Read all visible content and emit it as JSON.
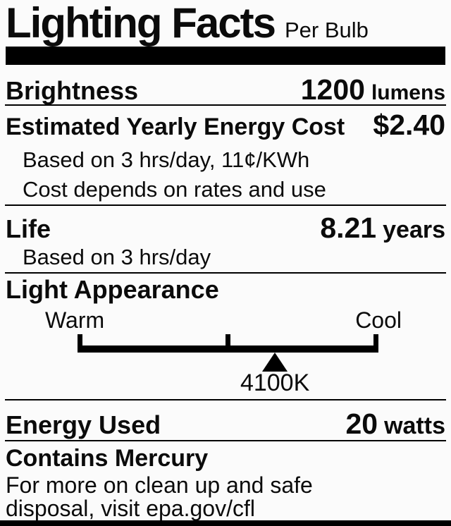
{
  "header": {
    "title": "Lighting Facts",
    "subtitle": "Per Bulb"
  },
  "brightness": {
    "label": "Brightness",
    "value": "1200",
    "unit": "lumens"
  },
  "energy_cost": {
    "label": "Estimated Yearly Energy Cost",
    "value": "$2.40",
    "note_basis": "Based on 3 hrs/day, 11¢/KWh",
    "note_disclaimer": "Cost depends on rates and use"
  },
  "life": {
    "label": "Life",
    "value": "8.21",
    "unit": "years",
    "note_basis": "Based on 3 hrs/day"
  },
  "light_appearance": {
    "label": "Light Appearance",
    "warm_label": "Warm",
    "cool_label": "Cool",
    "marker_value": "4100K",
    "marker_position_pct": 65.6
  },
  "energy_used": {
    "label": "Energy Used",
    "value": "20",
    "unit": "watts"
  },
  "mercury": {
    "label": "Contains Mercury",
    "note_line1": "For more on clean up and safe",
    "note_line2": "disposal, visit epa.gov/cfl"
  },
  "colors": {
    "text": "#0b0b0b",
    "background": "#fbfbfb",
    "bar": "#000000"
  }
}
